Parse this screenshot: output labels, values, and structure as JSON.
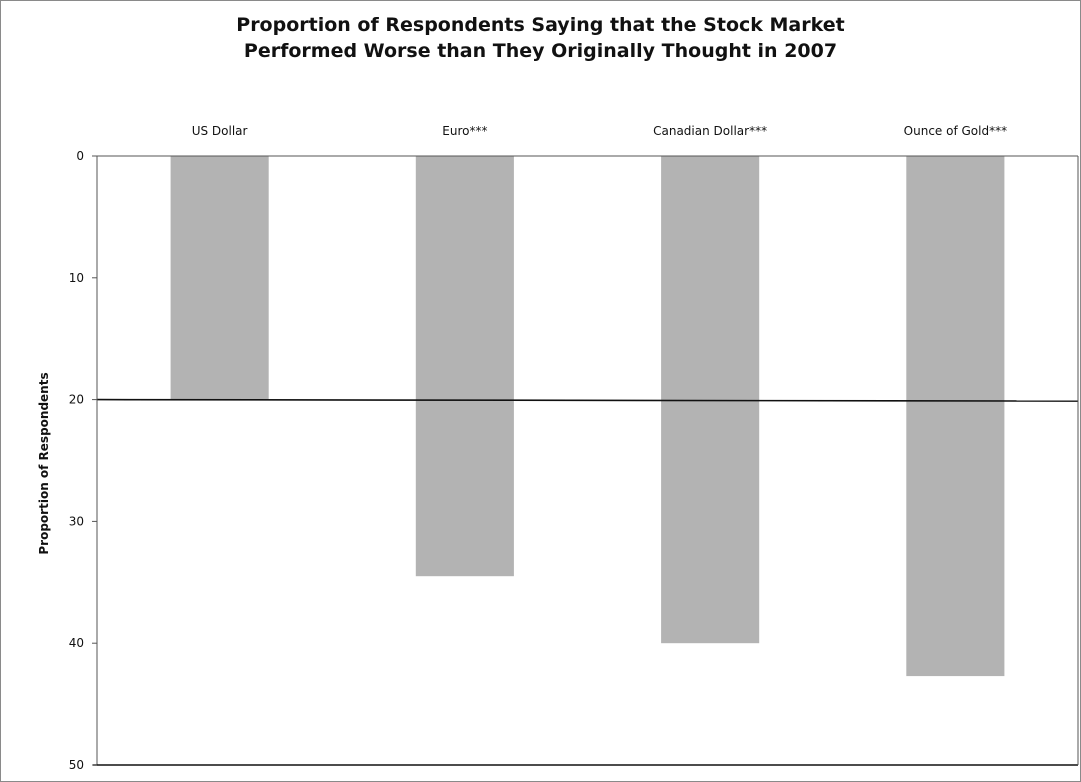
{
  "chart_data": {
    "type": "bar",
    "title_lines": [
      "Proportion of Respondents Saying that the Stock Market",
      "Performed Worse than They Originally Thought in 2007"
    ],
    "xlabel": "",
    "ylabel": "Proportion of Respondents",
    "y_inverted": true,
    "ylim": [
      0,
      50
    ],
    "yticks": [
      0,
      10,
      20,
      30,
      40,
      50
    ],
    "categories": [
      "US Dollar",
      "Euro***",
      "Canadian Dollar***",
      "Ounce of Gold***"
    ],
    "values": [
      20,
      34.5,
      40,
      42.7
    ],
    "reference_line": 20,
    "category_label_position": "top",
    "grid": false,
    "legend": "none",
    "colors": {
      "bar": "#b3b3b3",
      "axis": "#555555",
      "reference_line": "#111111"
    }
  }
}
